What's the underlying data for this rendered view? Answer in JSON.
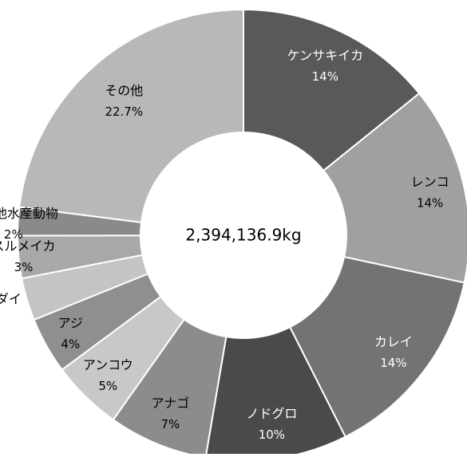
{
  "chart_data": {
    "type": "pie",
    "center_label": "2,394,136.9kg",
    "slices": [
      {
        "name": "ケンサキイカ",
        "value": 14,
        "value_label": "14%",
        "color": "#595959",
        "text_color": "#ffffff"
      },
      {
        "name": "レンコ",
        "value": 14,
        "value_label": "14%",
        "color": "#a0a0a0",
        "text_color": "#000000"
      },
      {
        "name": "カレイ",
        "value": 14,
        "value_label": "14%",
        "color": "#737373",
        "text_color": "#ffffff"
      },
      {
        "name": "ノドグロ",
        "value": 10,
        "value_label": "10%",
        "color": "#4a4a4a",
        "text_color": "#ffffff"
      },
      {
        "name": "アナゴ",
        "value": 7,
        "value_label": "7%",
        "color": "#8c8c8c",
        "text_color": "#000000"
      },
      {
        "name": "アンコウ",
        "value": 5,
        "value_label": "5%",
        "color": "#c8c8c8",
        "text_color": "#000000"
      },
      {
        "name": "アジ",
        "value": 4,
        "value_label": "4%",
        "color": "#8f8f8f",
        "text_color": "#000000"
      },
      {
        "name": "マダイ",
        "value": 3,
        "value_label": "",
        "color": "#c4c4c4",
        "text_color": "#000000"
      },
      {
        "name": "スルメイカ",
        "value": 3,
        "value_label": "3%",
        "color": "#a8a8a8",
        "text_color": "#000000"
      },
      {
        "name": "その他水産動物",
        "value": 2,
        "value_label": "2%",
        "color": "#8a8a8a",
        "text_color": "#000000"
      },
      {
        "name": "その他",
        "value": 22.7,
        "value_label": "22.7%",
        "color": "#b8b8b8",
        "text_color": "#000000"
      }
    ]
  }
}
